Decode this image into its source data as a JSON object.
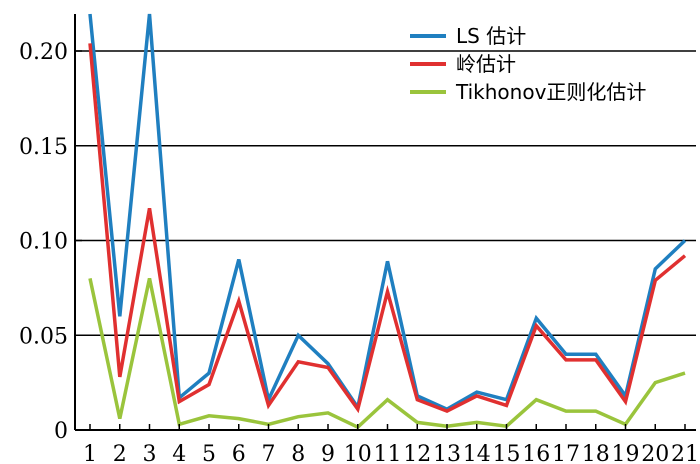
{
  "chart_data": {
    "type": "line",
    "title": "",
    "xlabel": "",
    "ylabel": "",
    "x": [
      "1",
      "2",
      "3",
      "4",
      "5",
      "6",
      "7",
      "8",
      "9",
      "10",
      "11",
      "12",
      "13",
      "14",
      "15",
      "16",
      "17",
      "18",
      "19",
      "20",
      "21"
    ],
    "yticks": [
      "0",
      "0.05",
      "0.10",
      "0.15",
      "0.20"
    ],
    "ylim": [
      0,
      0.22
    ],
    "grid": "horizontal",
    "legend_position": "top-right",
    "series": [
      {
        "name": "LS 估计",
        "color": "#1f7fc0",
        "values": [
          0.22,
          0.06,
          0.22,
          0.017,
          0.03,
          0.09,
          0.016,
          0.05,
          0.035,
          0.012,
          0.089,
          0.018,
          0.011,
          0.02,
          0.016,
          0.059,
          0.04,
          0.04,
          0.018,
          0.085,
          0.1
        ]
      },
      {
        "name": "岭估计",
        "color": "#e03030",
        "values": [
          0.204,
          0.028,
          0.117,
          0.015,
          0.024,
          0.068,
          0.013,
          0.036,
          0.033,
          0.011,
          0.073,
          0.016,
          0.01,
          0.018,
          0.013,
          0.055,
          0.037,
          0.037,
          0.015,
          0.079,
          0.092
        ]
      },
      {
        "name": "Tikhonov正则化估计",
        "color": "#9ac43c",
        "values": [
          0.08,
          0.006,
          0.08,
          0.003,
          0.0075,
          0.006,
          0.003,
          0.007,
          0.009,
          0.0015,
          0.016,
          0.004,
          0.002,
          0.004,
          0.002,
          0.016,
          0.01,
          0.01,
          0.003,
          0.025,
          0.03
        ]
      }
    ]
  }
}
